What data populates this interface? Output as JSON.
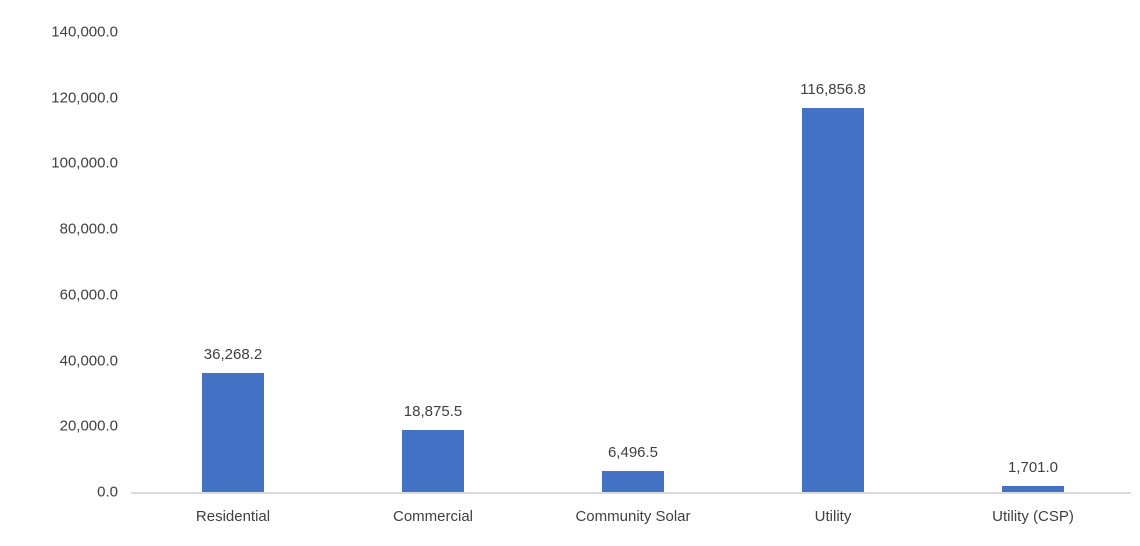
{
  "chart_data": {
    "type": "bar",
    "title": "",
    "xlabel": "",
    "ylabel": "",
    "categories": [
      "Residential",
      "Commercial",
      "Community Solar",
      "Utility",
      "Utility (CSP)"
    ],
    "values": [
      36268.2,
      18875.5,
      6496.5,
      116856.8,
      1701.0
    ],
    "value_labels": [
      "36,268.2",
      "18,875.5",
      "6,496.5",
      "116,856.8",
      "1,701.0"
    ],
    "ylim": [
      0,
      140000
    ],
    "ytick_step": 20000,
    "ytick_labels": [
      "0.0",
      "20,000.0",
      "40,000.0",
      "60,000.0",
      "80,000.0",
      "100,000.0",
      "120,000.0",
      "140,000.0"
    ],
    "grid": false,
    "legend": "none",
    "colors": {
      "bar_fill": "#4472C4",
      "axis_line": "#D9D9D9",
      "label_text": "#404040"
    }
  }
}
